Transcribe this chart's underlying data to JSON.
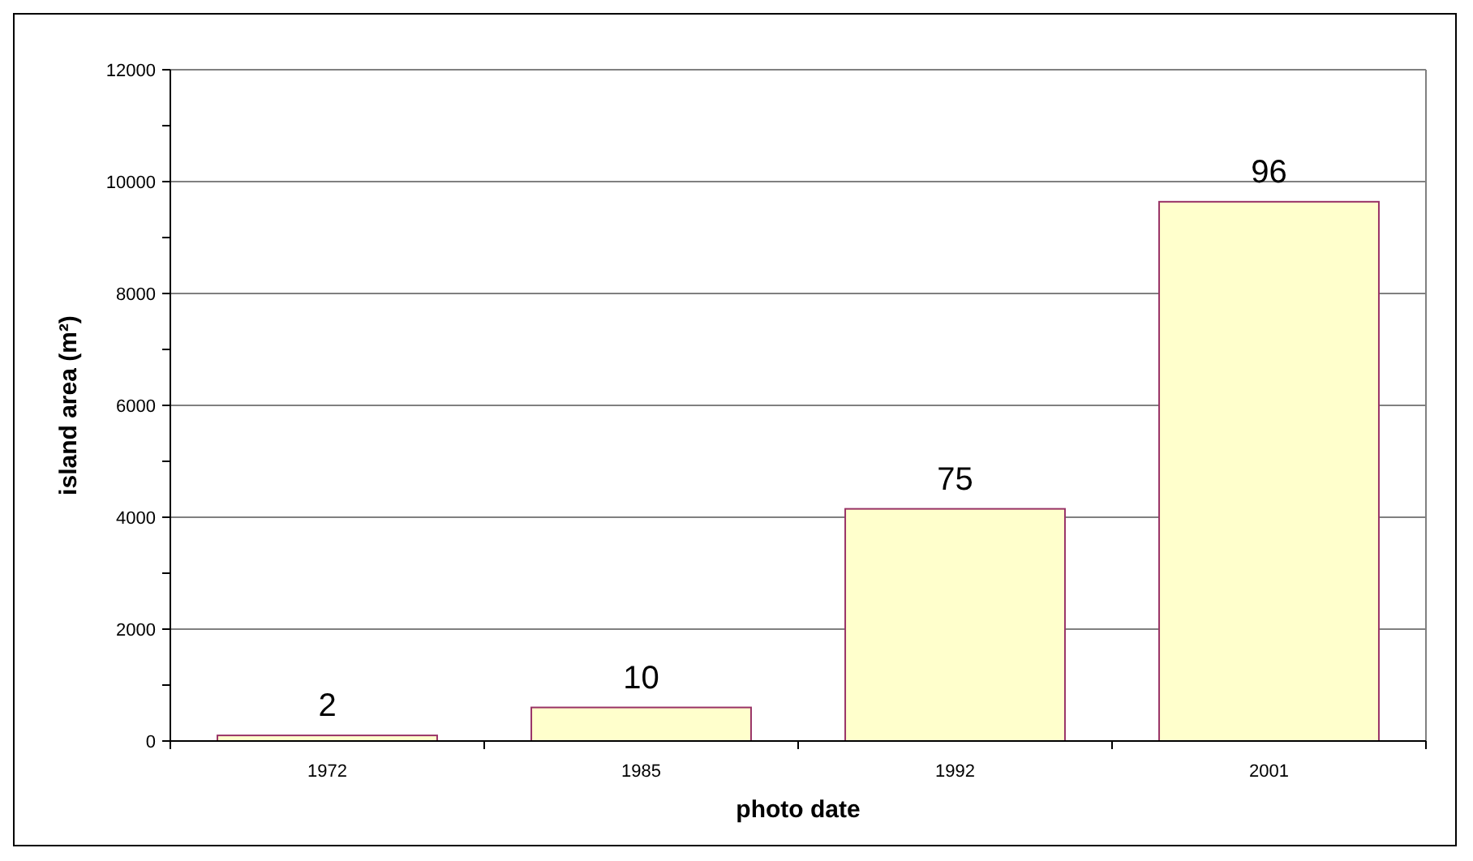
{
  "chart_data": {
    "type": "bar",
    "xlabel": "photo date",
    "ylabel": "island area (m²)",
    "categories": [
      "1972",
      "1985",
      "1992",
      "2001"
    ],
    "values": [
      100,
      600,
      4150,
      9640
    ],
    "color": "#ffffcc",
    "ylim": [
      0,
      12000
    ],
    "yticks": [
      0,
      {
        "value": 1000,
        "label": null
      },
      2000,
      {
        "value": 3000,
        "label": null
      },
      4000,
      {
        "value": 5000,
        "label": null
      },
      6000,
      {
        "value": 7000,
        "label": null
      },
      8000,
      {
        "value": 9000,
        "label": null
      },
      10000,
      {
        "value": 11000,
        "label": null
      },
      12000
    ],
    "grid": "y",
    "annotations": [
      {
        "text": "2",
        "x": "1972",
        "y": 100
      },
      {
        "text": "10",
        "x": "1985",
        "y": 600
      },
      {
        "text": "75",
        "x": "1992",
        "y": 4150
      },
      {
        "text": "96",
        "x": "2001",
        "y": 9640
      }
    ]
  }
}
